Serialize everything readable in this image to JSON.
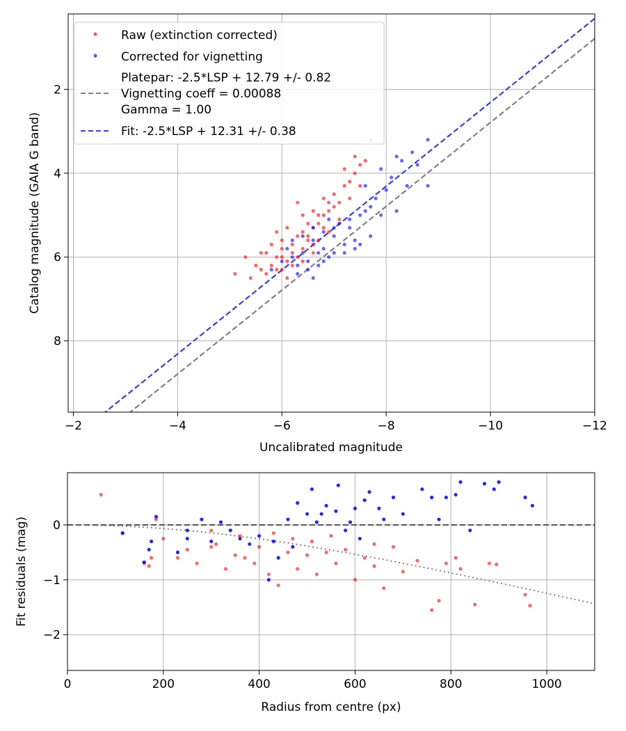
{
  "chart_data": [
    {
      "type": "scatter",
      "xlabel": "Uncalibrated magnitude",
      "ylabel": "Catalog magnitude (GAIA G band)",
      "xlim": [
        -1.9,
        -12
      ],
      "ylim": [
        9.7,
        0.2
      ],
      "xticks": [
        -2,
        -4,
        -6,
        -8,
        -10,
        -12
      ],
      "xtick_labels": [
        "−2",
        "−4",
        "−6",
        "−8",
        "−10",
        "−12"
      ],
      "yticks": [
        2,
        4,
        6,
        8
      ],
      "ytick_labels": [
        "2",
        "4",
        "6",
        "8"
      ],
      "grid": true,
      "legend_position": "top-left",
      "legend": {
        "raw": "Raw (extinction corrected)",
        "corrected": "Corrected for vignetting",
        "platepar": [
          "Platepar: -2.5*LSP + 12.79 +/- 0.82",
          "Vignetting coeff = 0.00088",
          "Gamma = 1.00"
        ],
        "fit": "Fit: -2.5*LSP + 12.31 +/- 0.38"
      },
      "lines": [
        {
          "name": "platepar",
          "slope": 1,
          "intercept": 12.79,
          "color": "#808080",
          "style": "dashed"
        },
        {
          "name": "fit",
          "slope": 1,
          "intercept": 12.31,
          "color": "#3a3ae8",
          "style": "dashed"
        }
      ],
      "series": [
        {
          "name": "Raw (extinction corrected)",
          "color": "#ff0000",
          "points": [
            [
              -5.1,
              6.4
            ],
            [
              -5.3,
              6.0
            ],
            [
              -5.5,
              6.2
            ],
            [
              -5.6,
              5.9
            ],
            [
              -5.7,
              6.4
            ],
            [
              -5.8,
              6.2
            ],
            [
              -5.9,
              6.0
            ],
            [
              -6.0,
              5.8
            ],
            [
              -6.1,
              6.1
            ],
            [
              -6.2,
              5.7
            ],
            [
              -6.3,
              5.5
            ],
            [
              -6.2,
              5.9
            ],
            [
              -6.4,
              5.4
            ],
            [
              -6.5,
              5.6
            ],
            [
              -6.6,
              5.3
            ],
            [
              -6.7,
              5.2
            ],
            [
              -6.8,
              5.0
            ],
            [
              -6.9,
              4.9
            ],
            [
              -7.0,
              4.8
            ],
            [
              -7.1,
              4.7
            ],
            [
              -6.0,
              6.3
            ],
            [
              -6.1,
              6.5
            ],
            [
              -5.9,
              6.3
            ],
            [
              -6.3,
              6.0
            ],
            [
              -6.4,
              5.8
            ],
            [
              -6.5,
              5.2
            ],
            [
              -6.6,
              4.9
            ],
            [
              -6.8,
              4.6
            ],
            [
              -7.0,
              4.5
            ],
            [
              -7.2,
              4.3
            ],
            [
              -7.3,
              4.2
            ],
            [
              -7.4,
              4.0
            ],
            [
              -7.5,
              3.8
            ],
            [
              -7.6,
              3.7
            ],
            [
              -7.7,
              3.2
            ],
            [
              -7.2,
              3.9
            ],
            [
              -7.4,
              3.6
            ],
            [
              -6.9,
              5.4
            ],
            [
              -6.7,
              5.6
            ],
            [
              -6.6,
              5.9
            ],
            [
              -6.2,
              6.2
            ],
            [
              -6.0,
              5.6
            ],
            [
              -5.8,
              5.7
            ],
            [
              -6.1,
              5.3
            ],
            [
              -6.3,
              4.7
            ],
            [
              -5.7,
              5.9
            ],
            [
              -5.9,
              5.4
            ],
            [
              -6.4,
              5.0
            ],
            [
              -6.5,
              5.5
            ],
            [
              -6.7,
              5.0
            ],
            [
              -7.1,
              5.1
            ],
            [
              -7.3,
              4.6
            ],
            [
              -7.5,
              4.3
            ],
            [
              -6.8,
              5.3
            ],
            [
              -6.6,
              5.7
            ],
            [
              -6.4,
              6.1
            ],
            [
              -6.0,
              6.0
            ],
            [
              -5.6,
              6.3
            ],
            [
              -5.4,
              6.5
            ],
            [
              -6.9,
              4.7
            ]
          ]
        },
        {
          "name": "Corrected for vignetting",
          "color": "#0000ff",
          "points": [
            [
              -5.8,
              6.3
            ],
            [
              -6.0,
              6.1
            ],
            [
              -6.2,
              6.0
            ],
            [
              -6.4,
              5.9
            ],
            [
              -6.5,
              6.3
            ],
            [
              -6.7,
              6.2
            ],
            [
              -6.8,
              5.8
            ],
            [
              -7.0,
              5.9
            ],
            [
              -7.2,
              5.7
            ],
            [
              -7.4,
              5.6
            ],
            [
              -6.6,
              5.6
            ],
            [
              -6.8,
              5.4
            ],
            [
              -7.0,
              5.5
            ],
            [
              -7.1,
              5.2
            ],
            [
              -7.3,
              5.3
            ],
            [
              -7.5,
              5.0
            ],
            [
              -7.6,
              4.9
            ],
            [
              -7.8,
              4.6
            ],
            [
              -8.0,
              4.4
            ],
            [
              -8.1,
              4.1
            ],
            [
              -6.3,
              6.4
            ],
            [
              -6.5,
              6.1
            ],
            [
              -6.7,
              5.9
            ],
            [
              -6.9,
              6.0
            ],
            [
              -7.2,
              5.9
            ],
            [
              -7.4,
              5.8
            ],
            [
              -7.7,
              5.5
            ],
            [
              -7.9,
              5.0
            ],
            [
              -8.2,
              4.9
            ],
            [
              -8.4,
              4.3
            ],
            [
              -8.6,
              3.8
            ],
            [
              -8.8,
              3.2
            ],
            [
              -8.8,
              4.3
            ],
            [
              -8.5,
              3.5
            ],
            [
              -8.3,
              3.7
            ],
            [
              -7.9,
              3.9
            ],
            [
              -8.2,
              3.6
            ],
            [
              -7.6,
              4.3
            ],
            [
              -6.9,
              5.1
            ],
            [
              -6.6,
              5.3
            ],
            [
              -6.4,
              5.5
            ],
            [
              -6.2,
              5.6
            ],
            [
              -6.1,
              5.8
            ],
            [
              -6.3,
              6.2
            ],
            [
              -6.6,
              6.5
            ],
            [
              -6.8,
              6.1
            ],
            [
              -7.0,
              5.3
            ],
            [
              -7.3,
              5.1
            ],
            [
              -7.5,
              5.7
            ],
            [
              -7.7,
              4.8
            ]
          ]
        }
      ]
    },
    {
      "type": "scatter",
      "xlabel": "Radius from centre (px)",
      "ylabel": "Fit residuals (mag)",
      "xlim": [
        0,
        1100
      ],
      "ylim": [
        -2.65,
        0.95
      ],
      "xticks": [
        0,
        200,
        400,
        600,
        800,
        1000
      ],
      "xtick_labels": [
        "0",
        "200",
        "400",
        "600",
        "800",
        "1000"
      ],
      "yticks": [
        0,
        -1,
        -2
      ],
      "ytick_labels": [
        "0",
        "−1",
        "−2"
      ],
      "grid": true,
      "reference_line": {
        "y": 0,
        "color": "#555555",
        "style": "dashed"
      },
      "vignetting_curve": {
        "coeff": 0.00088,
        "color": "#808080",
        "style": "dotted"
      },
      "series": [
        {
          "name": "Raw (extinction corrected)",
          "color": "#ff0000",
          "points": [
            [
              70,
              0.55
            ],
            [
              115,
              -0.15
            ],
            [
              160,
              -0.7
            ],
            [
              170,
              -0.75
            ],
            [
              175,
              -0.6
            ],
            [
              185,
              0.1
            ],
            [
              200,
              -0.25
            ],
            [
              230,
              -0.6
            ],
            [
              250,
              -0.45
            ],
            [
              270,
              -0.7
            ],
            [
              300,
              -0.4
            ],
            [
              310,
              -0.35
            ],
            [
              330,
              -0.8
            ],
            [
              350,
              -0.55
            ],
            [
              370,
              -0.6
            ],
            [
              390,
              -0.7
            ],
            [
              400,
              -0.4
            ],
            [
              420,
              -0.9
            ],
            [
              440,
              -1.1
            ],
            [
              460,
              -0.5
            ],
            [
              480,
              -0.8
            ],
            [
              500,
              -0.55
            ],
            [
              520,
              -0.9
            ],
            [
              540,
              -0.5
            ],
            [
              560,
              -0.7
            ],
            [
              580,
              -0.45
            ],
            [
              600,
              -1.0
            ],
            [
              620,
              -0.6
            ],
            [
              640,
              -0.75
            ],
            [
              660,
              -1.15
            ],
            [
              680,
              -0.4
            ],
            [
              700,
              -0.85
            ],
            [
              730,
              -0.65
            ],
            [
              760,
              -1.55
            ],
            [
              775,
              -1.38
            ],
            [
              790,
              -0.7
            ],
            [
              810,
              -0.6
            ],
            [
              820,
              -0.8
            ],
            [
              850,
              -1.45
            ],
            [
              880,
              -0.7
            ],
            [
              895,
              -0.72
            ],
            [
              955,
              -1.27
            ],
            [
              965,
              -1.47
            ],
            [
              300,
              -0.1
            ],
            [
              360,
              -0.2
            ],
            [
              430,
              -0.15
            ],
            [
              470,
              -0.25
            ],
            [
              510,
              -0.3
            ],
            [
              550,
              -0.2
            ],
            [
              640,
              -0.35
            ]
          ]
        },
        {
          "name": "Corrected for vignetting",
          "color": "#0000ff",
          "points": [
            [
              115,
              -0.15
            ],
            [
              160,
              -0.68
            ],
            [
              170,
              -0.45
            ],
            [
              175,
              -0.3
            ],
            [
              185,
              0.15
            ],
            [
              230,
              -0.5
            ],
            [
              250,
              -0.25
            ],
            [
              280,
              0.1
            ],
            [
              300,
              -0.3
            ],
            [
              320,
              0.05
            ],
            [
              340,
              -0.1
            ],
            [
              360,
              -0.25
            ],
            [
              380,
              -0.35
            ],
            [
              400,
              -0.2
            ],
            [
              420,
              -1.0
            ],
            [
              440,
              -0.6
            ],
            [
              460,
              0.1
            ],
            [
              480,
              0.4
            ],
            [
              500,
              0.2
            ],
            [
              510,
              0.65
            ],
            [
              520,
              0.05
            ],
            [
              540,
              0.35
            ],
            [
              560,
              0.25
            ],
            [
              565,
              0.72
            ],
            [
              580,
              -0.1
            ],
            [
              600,
              0.3
            ],
            [
              610,
              -0.25
            ],
            [
              620,
              0.45
            ],
            [
              630,
              0.6
            ],
            [
              650,
              0.3
            ],
            [
              660,
              0.1
            ],
            [
              680,
              0.5
            ],
            [
              700,
              0.2
            ],
            [
              740,
              0.65
            ],
            [
              760,
              0.5
            ],
            [
              775,
              0.1
            ],
            [
              790,
              0.5
            ],
            [
              810,
              0.55
            ],
            [
              820,
              0.78
            ],
            [
              840,
              -0.1
            ],
            [
              870,
              0.75
            ],
            [
              890,
              0.65
            ],
            [
              900,
              0.78
            ],
            [
              955,
              0.5
            ],
            [
              970,
              0.35
            ],
            [
              430,
              -0.3
            ],
            [
              470,
              -0.4
            ],
            [
              530,
              0.2
            ],
            [
              590,
              0.05
            ],
            [
              250,
              -0.1
            ]
          ]
        }
      ]
    }
  ]
}
